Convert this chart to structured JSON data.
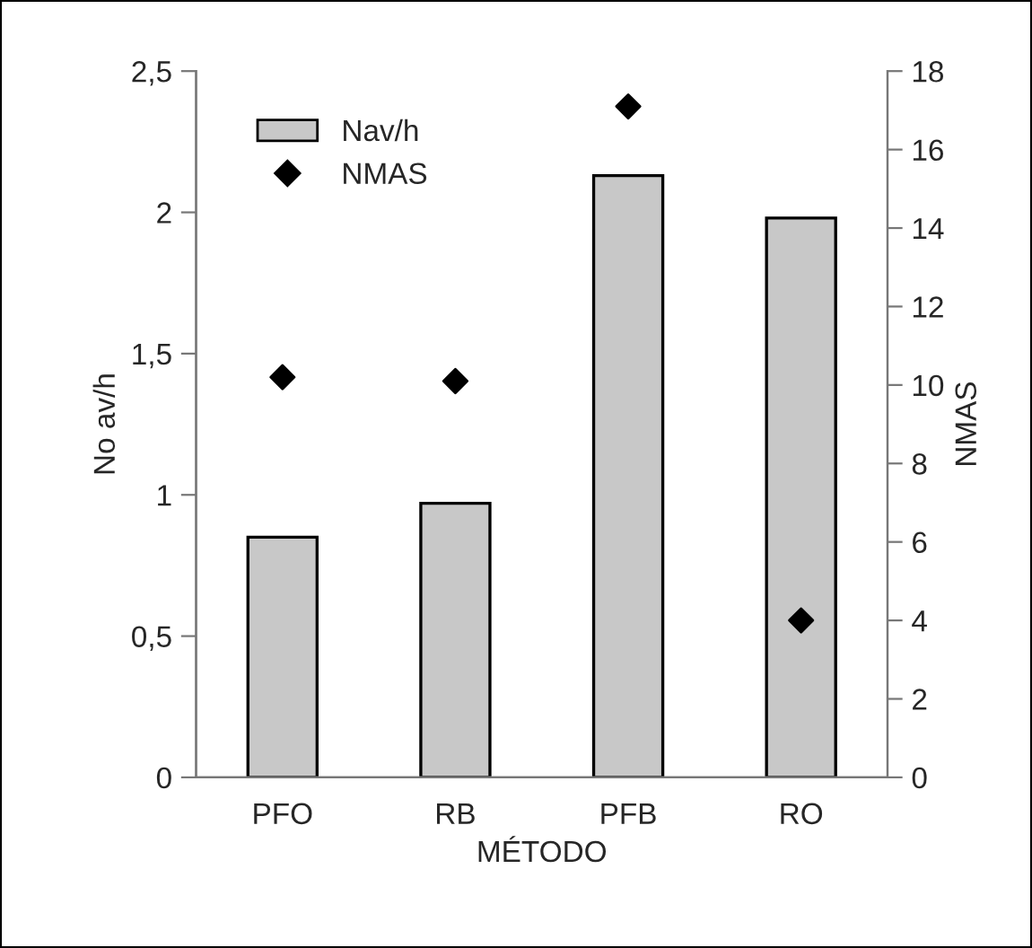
{
  "chart_data": {
    "type": "bar",
    "xlabel": "MÉTODO",
    "ylabel": "No av/h",
    "y2label": "NMAS",
    "categories": [
      "PFO",
      "RB",
      "PFB",
      "RO"
    ],
    "series": [
      {
        "name": "Nav/h",
        "color": "#c8c8c8",
        "values": [
          0.85,
          0.97,
          2.13,
          1.98
        ]
      },
      {
        "name": "NMAS",
        "type": "scatter",
        "axis": "y2",
        "color": "#000000",
        "marker": "diamond",
        "values": [
          10.2,
          10.1,
          17.1,
          4
        ]
      }
    ],
    "ylim": [
      0,
      2.5
    ],
    "yticks": [
      0,
      {
        "value": 0.5,
        "label": "0,5"
      },
      1,
      {
        "value": 1.5,
        "label": "1,5"
      },
      2,
      {
        "value": 2.5,
        "label": "2,5"
      }
    ],
    "y2lim": [
      0,
      18
    ],
    "y2ticks": [
      0,
      2,
      4,
      6,
      8,
      10,
      12,
      14,
      16,
      18
    ],
    "legend": "top left",
    "grid": false
  }
}
